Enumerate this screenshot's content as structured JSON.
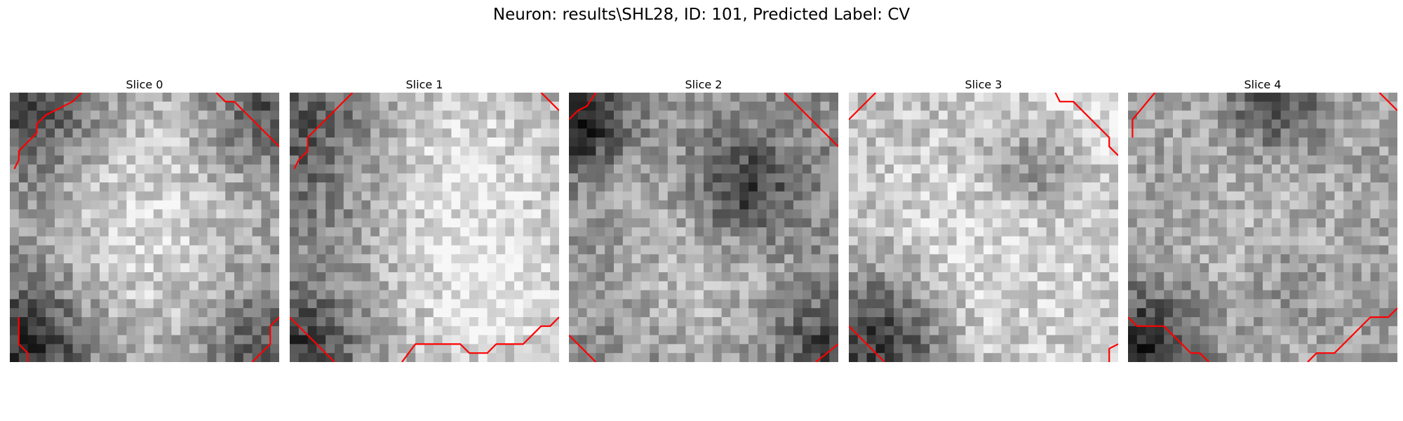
{
  "figure": {
    "title": "Neuron: results\\SHL28, ID: 101, Predicted Label: CV"
  },
  "slices": [
    {
      "title": "Slice 0"
    },
    {
      "title": "Slice 1"
    },
    {
      "title": "Slice 2"
    },
    {
      "title": "Slice 3"
    },
    {
      "title": "Slice 4"
    }
  ],
  "colors": {
    "contour": "#ff0000",
    "background": "#ffffff"
  }
}
